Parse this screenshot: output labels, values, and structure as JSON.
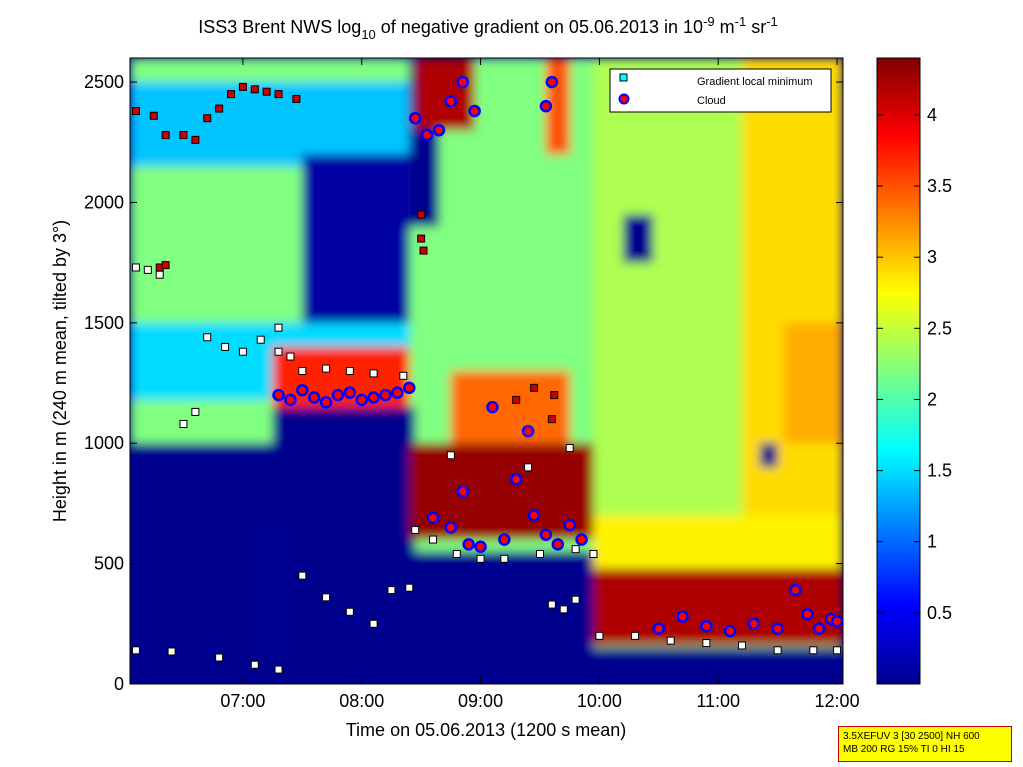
{
  "chart_data": {
    "type": "heatmap",
    "title": {
      "prefix": "ISS3 Brent NWS log",
      "log_base": "10",
      "middle": " of negative gradient on 05.06.2013 in 10",
      "exp1": "-9",
      "unit1": " m",
      "exp2": "-1",
      "unit2": " sr",
      "exp3": "-1"
    },
    "xlabel": "Time on 05.06.2013 (1200 s mean)",
    "ylabel": "Height in m (240 m mean, tilted by 3°)",
    "x_ticks": [
      "07:00",
      "08:00",
      "09:00",
      "10:00",
      "11:00",
      "12:00"
    ],
    "x_tick_hours": [
      7,
      8,
      9,
      10,
      11,
      12
    ],
    "xlim_hours": [
      6.05,
      12.05
    ],
    "y_ticks": [
      "0",
      "500",
      "1000",
      "1500",
      "2000",
      "2500"
    ],
    "y_tick_values": [
      0,
      500,
      1000,
      1500,
      2000,
      2500
    ],
    "ylim": [
      0,
      2600
    ],
    "colorbar": {
      "ticks": [
        "0.5",
        "1",
        "1.5",
        "2",
        "2.5",
        "3",
        "3.5",
        "4"
      ],
      "tick_values": [
        0.5,
        1,
        1.5,
        2,
        2.5,
        3,
        3.5,
        4
      ],
      "range": [
        0,
        4.4
      ],
      "colormap": "jet"
    },
    "legend": {
      "placement": "top-right",
      "entries": [
        {
          "label": "Gradient local minimum",
          "color": "#00ffff",
          "marker": "square"
        },
        {
          "label": "Cloud",
          "color": "#ff0000",
          "edge": "#0000ff",
          "marker": "circle"
        }
      ]
    },
    "field_regions": [
      {
        "t": [
          6.05,
          12.05
        ],
        "h": [
          0,
          2600
        ],
        "value": 2.2
      },
      {
        "t": [
          6.05,
          8.0
        ],
        "h": [
          0,
          650
        ],
        "value": 1.6
      },
      {
        "t": [
          6.05,
          7.25
        ],
        "h": [
          0,
          1000
        ],
        "value": 0.0
      },
      {
        "t": [
          7.25,
          8.45
        ],
        "h": [
          0,
          1150
        ],
        "value": 0.0
      },
      {
        "t": [
          8.4,
          9.95
        ],
        "h": [
          0,
          550
        ],
        "value": 0.0
      },
      {
        "t": [
          9.95,
          12.05
        ],
        "h": [
          0,
          150
        ],
        "value": 0.0
      },
      {
        "t": [
          6.05,
          8.4
        ],
        "h": [
          2150,
          2500
        ],
        "value": 1.4
      },
      {
        "t": [
          7.5,
          8.4
        ],
        "h": [
          1500,
          2200
        ],
        "value": 0.1
      },
      {
        "t": [
          6.05,
          8.4
        ],
        "h": [
          1180,
          1500
        ],
        "value": 1.5
      },
      {
        "t": [
          7.25,
          8.4
        ],
        "h": [
          1150,
          1400
        ],
        "value": 3.7
      },
      {
        "t": [
          8.4,
          9.95
        ],
        "h": [
          600,
          1000
        ],
        "value": 4.3
      },
      {
        "t": [
          8.75,
          9.75
        ],
        "h": [
          1000,
          1300
        ],
        "value": 3.4
      },
      {
        "t": [
          8.4,
          8.65
        ],
        "h": [
          1900,
          2600
        ],
        "value": 0.0
      },
      {
        "t": [
          8.45,
          8.95
        ],
        "h": [
          2300,
          2600
        ],
        "value": 4.2
      },
      {
        "t": [
          9.55,
          9.75
        ],
        "h": [
          2200,
          2600
        ],
        "value": 3.5
      },
      {
        "t": [
          9.95,
          12.05
        ],
        "h": [
          160,
          480
        ],
        "value": 4.2
      },
      {
        "t": [
          9.95,
          12.05
        ],
        "h": [
          480,
          700
        ],
        "value": 2.8
      },
      {
        "t": [
          9.95,
          11.2
        ],
        "h": [
          700,
          2600
        ],
        "value": 2.4
      },
      {
        "t": [
          11.2,
          12.05
        ],
        "h": [
          700,
          2600
        ],
        "value": 2.9
      },
      {
        "t": [
          11.55,
          12.05
        ],
        "h": [
          1000,
          1500
        ],
        "value": 3.1
      },
      {
        "t": [
          10.2,
          10.45
        ],
        "h": [
          1750,
          1950
        ],
        "value": 0.0
      },
      {
        "t": [
          11.35,
          11.5
        ],
        "h": [
          900,
          1000
        ],
        "value": 0.0
      }
    ],
    "gradient_minimum_points": [
      {
        "t": 6.1,
        "h": 1730
      },
      {
        "t": 6.2,
        "h": 1720
      },
      {
        "t": 6.3,
        "h": 1700
      },
      {
        "t": 6.5,
        "h": 1080
      },
      {
        "t": 6.6,
        "h": 1130
      },
      {
        "t": 6.7,
        "h": 1440
      },
      {
        "t": 6.85,
        "h": 1400
      },
      {
        "t": 7.0,
        "h": 1380
      },
      {
        "t": 7.15,
        "h": 1430
      },
      {
        "t": 7.3,
        "h": 1480
      },
      {
        "t": 7.3,
        "h": 1380
      },
      {
        "t": 7.4,
        "h": 1360
      },
      {
        "t": 7.5,
        "h": 1300
      },
      {
        "t": 7.7,
        "h": 1310
      },
      {
        "t": 7.9,
        "h": 1300
      },
      {
        "t": 8.1,
        "h": 1290
      },
      {
        "t": 8.35,
        "h": 1280
      },
      {
        "t": 7.5,
        "h": 450
      },
      {
        "t": 7.7,
        "h": 360
      },
      {
        "t": 7.9,
        "h": 300
      },
      {
        "t": 8.1,
        "h": 250
      },
      {
        "t": 8.25,
        "h": 390
      },
      {
        "t": 8.4,
        "h": 400
      },
      {
        "t": 6.1,
        "h": 140
      },
      {
        "t": 6.4,
        "h": 135
      },
      {
        "t": 6.8,
        "h": 110
      },
      {
        "t": 7.1,
        "h": 80
      },
      {
        "t": 7.3,
        "h": 60
      },
      {
        "t": 8.45,
        "h": 640
      },
      {
        "t": 8.6,
        "h": 600
      },
      {
        "t": 8.8,
        "h": 540
      },
      {
        "t": 9.0,
        "h": 520
      },
      {
        "t": 9.2,
        "h": 520
      },
      {
        "t": 9.5,
        "h": 540
      },
      {
        "t": 9.8,
        "h": 560
      },
      {
        "t": 9.95,
        "h": 540
      },
      {
        "t": 8.75,
        "h": 950
      },
      {
        "t": 9.4,
        "h": 900
      },
      {
        "t": 9.75,
        "h": 980
      },
      {
        "t": 9.6,
        "h": 330
      },
      {
        "t": 9.7,
        "h": 310
      },
      {
        "t": 9.8,
        "h": 350
      },
      {
        "t": 10.0,
        "h": 200
      },
      {
        "t": 10.3,
        "h": 200
      },
      {
        "t": 10.6,
        "h": 180
      },
      {
        "t": 10.9,
        "h": 170
      },
      {
        "t": 11.2,
        "h": 160
      },
      {
        "t": 11.5,
        "h": 140
      },
      {
        "t": 11.8,
        "h": 140
      },
      {
        "t": 12.0,
        "h": 140
      }
    ],
    "red_square_points": [
      {
        "t": 6.1,
        "h": 2380
      },
      {
        "t": 6.25,
        "h": 2360
      },
      {
        "t": 6.35,
        "h": 2280
      },
      {
        "t": 6.5,
        "h": 2280
      },
      {
        "t": 6.6,
        "h": 2260
      },
      {
        "t": 6.7,
        "h": 2350
      },
      {
        "t": 6.8,
        "h": 2390
      },
      {
        "t": 6.9,
        "h": 2450
      },
      {
        "t": 7.0,
        "h": 2480
      },
      {
        "t": 7.1,
        "h": 2470
      },
      {
        "t": 7.2,
        "h": 2460
      },
      {
        "t": 7.3,
        "h": 2450
      },
      {
        "t": 7.45,
        "h": 2430
      },
      {
        "t": 6.3,
        "h": 1730
      },
      {
        "t": 6.35,
        "h": 1740
      },
      {
        "t": 8.5,
        "h": 1950
      },
      {
        "t": 8.5,
        "h": 1850
      },
      {
        "t": 8.52,
        "h": 1800
      },
      {
        "t": 9.3,
        "h": 1180
      },
      {
        "t": 9.45,
        "h": 1230
      },
      {
        "t": 9.6,
        "h": 1100
      },
      {
        "t": 9.62,
        "h": 1200
      }
    ],
    "cloud_points": [
      {
        "t": 7.3,
        "h": 1200
      },
      {
        "t": 7.4,
        "h": 1180
      },
      {
        "t": 7.5,
        "h": 1220
      },
      {
        "t": 7.6,
        "h": 1190
      },
      {
        "t": 7.7,
        "h": 1170
      },
      {
        "t": 7.8,
        "h": 1200
      },
      {
        "t": 7.9,
        "h": 1210
      },
      {
        "t": 8.0,
        "h": 1180
      },
      {
        "t": 8.1,
        "h": 1190
      },
      {
        "t": 8.2,
        "h": 1200
      },
      {
        "t": 8.3,
        "h": 1210
      },
      {
        "t": 8.4,
        "h": 1230
      },
      {
        "t": 8.45,
        "h": 2350
      },
      {
        "t": 8.55,
        "h": 2280
      },
      {
        "t": 8.65,
        "h": 2300
      },
      {
        "t": 8.75,
        "h": 2420
      },
      {
        "t": 8.85,
        "h": 2500
      },
      {
        "t": 8.95,
        "h": 2380
      },
      {
        "t": 9.55,
        "h": 2400
      },
      {
        "t": 9.6,
        "h": 2500
      },
      {
        "t": 8.6,
        "h": 690
      },
      {
        "t": 8.75,
        "h": 650
      },
      {
        "t": 8.85,
        "h": 800
      },
      {
        "t": 8.9,
        "h": 580
      },
      {
        "t": 9.0,
        "h": 570
      },
      {
        "t": 9.1,
        "h": 1150
      },
      {
        "t": 9.2,
        "h": 600
      },
      {
        "t": 9.3,
        "h": 850
      },
      {
        "t": 9.4,
        "h": 1050
      },
      {
        "t": 9.45,
        "h": 700
      },
      {
        "t": 9.55,
        "h": 620
      },
      {
        "t": 9.65,
        "h": 580
      },
      {
        "t": 9.75,
        "h": 660
      },
      {
        "t": 9.85,
        "h": 600
      },
      {
        "t": 10.5,
        "h": 230
      },
      {
        "t": 10.7,
        "h": 280
      },
      {
        "t": 10.9,
        "h": 240
      },
      {
        "t": 11.1,
        "h": 220
      },
      {
        "t": 11.3,
        "h": 250
      },
      {
        "t": 11.5,
        "h": 230
      },
      {
        "t": 11.65,
        "h": 390
      },
      {
        "t": 11.75,
        "h": 290
      },
      {
        "t": 11.85,
        "h": 230
      },
      {
        "t": 11.95,
        "h": 270
      },
      {
        "t": 12.0,
        "h": 260
      }
    ]
  },
  "info_box": {
    "line1": "3.5XEFUV 3 [30 2500] NH 600",
    "line2": "MB 200 RG 15% TI 0 HI 15"
  }
}
